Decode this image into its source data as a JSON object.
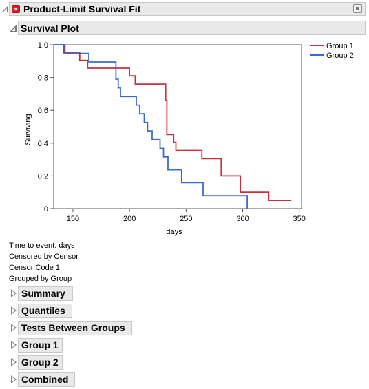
{
  "header": {
    "title": "Product-Limit Survival Fit"
  },
  "plot_section": {
    "title": "Survival Plot"
  },
  "chart_data": {
    "type": "line",
    "step": true,
    "xlabel": "days",
    "ylabel": "Surviving",
    "xlim": [
      133,
      352
    ],
    "ylim": [
      0,
      1.0
    ],
    "x_ticks": [
      150,
      200,
      250,
      300,
      350
    ],
    "y_ticks": [
      0,
      0.2,
      0.4,
      0.6,
      0.8,
      1.0
    ],
    "y_tick_labels": [
      "0",
      "0.2",
      "0.4",
      "0.6",
      "0.8",
      "1.0"
    ],
    "legend_position": "top-right",
    "series": [
      {
        "name": "Group 1",
        "color": "#c8323c",
        "x": [
          142,
          156,
          163,
          200,
          205,
          209,
          232,
          233,
          239,
          241,
          244,
          264,
          281,
          298,
          323,
          343
        ],
        "y": [
          0.95,
          0.905,
          0.857,
          0.81,
          0.76,
          0.76,
          0.66,
          0.452,
          0.405,
          0.355,
          0.355,
          0.305,
          0.2,
          0.1,
          0.05,
          0.05
        ]
      },
      {
        "name": "Group 2",
        "color": "#3a6cd0",
        "x": [
          143,
          164,
          188,
          190,
          192,
          206,
          209,
          213,
          216,
          220,
          227,
          230,
          234,
          246,
          265,
          304
        ],
        "y": [
          0.947,
          0.895,
          0.79,
          0.737,
          0.684,
          0.632,
          0.579,
          0.526,
          0.474,
          0.421,
          0.368,
          0.316,
          0.237,
          0.158,
          0.079,
          0.0
        ]
      }
    ]
  },
  "info": {
    "time_to_event": "Time to event:  days",
    "censored_by": "Censored by  Censor",
    "censor_code": "Censor Code  1",
    "grouped_by": "Grouped by  Group"
  },
  "reports": [
    {
      "label": "Summary"
    },
    {
      "label": "Quantiles"
    },
    {
      "label": "Tests Between Groups"
    },
    {
      "label": "Group 1"
    },
    {
      "label": "Group 2"
    },
    {
      "label": "Combined"
    }
  ]
}
